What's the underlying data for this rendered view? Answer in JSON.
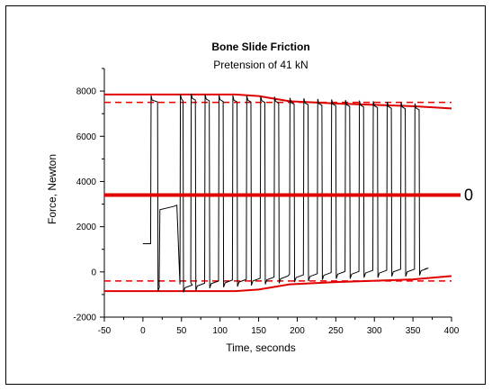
{
  "chart_data": {
    "type": "line",
    "title": "Bone Slide Friction",
    "subtitle": "Pretension of 41 kN",
    "xlabel": "Time, seconds",
    "ylabel": "Force, Newton",
    "xlim": [
      -50,
      400
    ],
    "ylim": [
      -2000,
      9000
    ],
    "xticks": [
      "-50",
      "0",
      "50",
      "100",
      "150",
      "200",
      "250",
      "300",
      "350",
      "400"
    ],
    "yticks": [
      "-2000",
      "0",
      "2000",
      "4000",
      "6000",
      "8000"
    ],
    "grid": false,
    "colors": {
      "signal": "#000000",
      "envelope": "#e00000"
    },
    "zero_line": {
      "y": 3400,
      "label": "0"
    },
    "pulses": [
      {
        "rise": 10,
        "fall": 19,
        "high": 7600,
        "low": -650
      },
      {
        "rise": 48,
        "fall": 52,
        "high": 7650,
        "low": -700
      },
      {
        "rise": 62,
        "fall": 68,
        "high": 7680,
        "low": -620
      },
      {
        "rise": 80,
        "fall": 86,
        "high": 7650,
        "low": -520
      },
      {
        "rise": 98,
        "fall": 104,
        "high": 7620,
        "low": -480
      },
      {
        "rise": 116,
        "fall": 122,
        "high": 7600,
        "low": -450
      },
      {
        "rise": 134,
        "fall": 140,
        "high": 7600,
        "low": -400
      },
      {
        "rise": 152,
        "fall": 158,
        "high": 7580,
        "low": -350
      },
      {
        "rise": 170,
        "fall": 176,
        "high": 7550,
        "low": -300
      },
      {
        "rise": 190,
        "fall": 196,
        "high": 7500,
        "low": -250
      },
      {
        "rise": 208,
        "fall": 214,
        "high": 7480,
        "low": -200
      },
      {
        "rise": 226,
        "fall": 232,
        "high": 7450,
        "low": -150
      },
      {
        "rise": 244,
        "fall": 250,
        "high": 7430,
        "low": -100
      },
      {
        "rise": 262,
        "fall": 268,
        "high": 7400,
        "low": -100
      },
      {
        "rise": 280,
        "fall": 286,
        "high": 7380,
        "low": -50
      },
      {
        "rise": 298,
        "fall": 304,
        "high": 7350,
        "low": -50
      },
      {
        "rise": 316,
        "fall": 322,
        "high": 7320,
        "low": 0
      },
      {
        "rise": 334,
        "fall": 340,
        "high": 7300,
        "low": 0
      },
      {
        "rise": 352,
        "fall": 358,
        "high": 7250,
        "low": 50
      }
    ],
    "signal_start": {
      "x": 0,
      "y": 1250
    },
    "signal_end": {
      "x": 365,
      "y": 130
    },
    "early_step": {
      "x1": 22,
      "x2": 44,
      "y1": 2750,
      "y2": 2900
    },
    "envelope_upper_solid": [
      [
        -50,
        7850
      ],
      [
        120,
        7850
      ],
      [
        150,
        7780
      ],
      [
        190,
        7550
      ],
      [
        250,
        7450
      ],
      [
        350,
        7330
      ],
      [
        400,
        7230
      ]
    ],
    "envelope_lower_solid": [
      [
        -50,
        -850
      ],
      [
        120,
        -850
      ],
      [
        150,
        -780
      ],
      [
        190,
        -550
      ],
      [
        250,
        -450
      ],
      [
        350,
        -330
      ],
      [
        400,
        -180
      ]
    ],
    "envelope_upper_dashed": 7500,
    "envelope_lower_dashed": -400
  }
}
